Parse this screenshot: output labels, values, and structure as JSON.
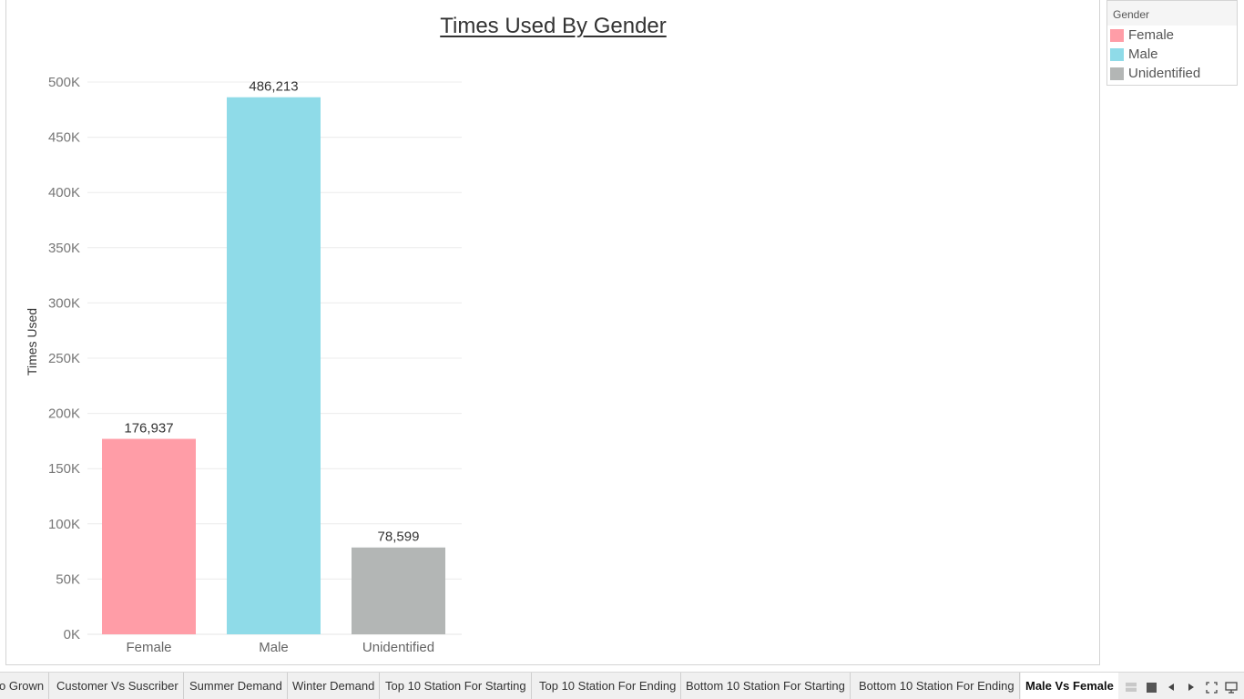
{
  "chart_data": {
    "type": "bar",
    "title": "Times Used By Gender",
    "xlabel": "",
    "ylabel": "Times Used",
    "ylim": [
      0,
      500000
    ],
    "yticks": [
      0,
      50000,
      100000,
      150000,
      200000,
      250000,
      300000,
      350000,
      400000,
      450000,
      500000
    ],
    "ytick_labels": [
      "0K",
      "50K",
      "100K",
      "150K",
      "200K",
      "250K",
      "300K",
      "350K",
      "400K",
      "450K",
      "500K"
    ],
    "categories": [
      "Female",
      "Male",
      "Unidentified"
    ],
    "values": [
      176937,
      486213,
      78599
    ],
    "value_labels": [
      "176,937",
      "486,213",
      "78,599"
    ],
    "colors": [
      "#ff9da7",
      "#8fdbe8",
      "#b3b6b5"
    ],
    "grid": true,
    "legend_placement": "top-right"
  },
  "legend": {
    "title": "Gender",
    "items": [
      {
        "label": "Female",
        "color": "#ff9da7"
      },
      {
        "label": "Male",
        "color": "#8fdbe8"
      },
      {
        "label": "Unidentified",
        "color": "#b3b6b5"
      }
    ]
  },
  "tabs": [
    "o Grown",
    "Customer Vs Suscriber",
    "Summer Demand",
    "Winter Demand",
    "Top 10 Station For Starting",
    "Top 10 Station For Ending",
    "Bottom 10 Station For Starting",
    "Bottom 10 Station For Ending",
    "Male Vs Female"
  ],
  "active_tab": "Male Vs Female"
}
